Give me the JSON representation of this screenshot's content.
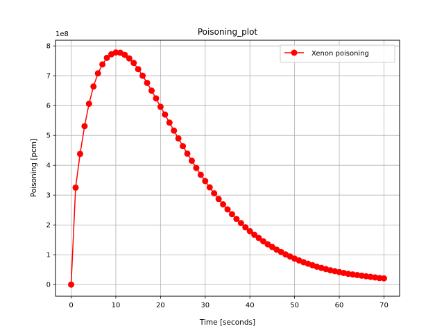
{
  "chart_data": {
    "type": "line",
    "title": "Poisoning_plot",
    "xlabel": "Time [seconds]",
    "ylabel": "Poisoning [pcm]",
    "y_exponent_label": "1e8",
    "xlim": [
      -3.5,
      73.5
    ],
    "ylim": [
      -0.39,
      8.19
    ],
    "y_scale_factor": 100000000,
    "x_ticks": [
      0,
      10,
      20,
      30,
      40,
      50,
      60,
      70
    ],
    "x_tick_labels": [
      "0",
      "10",
      "20",
      "30",
      "40",
      "50",
      "60",
      "70"
    ],
    "y_ticks": [
      0,
      1,
      2,
      3,
      4,
      5,
      6,
      7,
      8
    ],
    "y_tick_labels": [
      "0",
      "1",
      "2",
      "3",
      "4",
      "5",
      "6",
      "7",
      "8"
    ],
    "grid": true,
    "legend_position": "top-right",
    "colors": {
      "series": "#ff0000",
      "grid": "#b0b0b0",
      "legend_border": "#cccccc"
    },
    "series": [
      {
        "name": "Xenon poisoning",
        "marker": "circle",
        "x": [
          0,
          1,
          2,
          3,
          4,
          5,
          6,
          7,
          8,
          9,
          10,
          11,
          12,
          13,
          14,
          15,
          16,
          17,
          18,
          19,
          20,
          21,
          22,
          23,
          24,
          25,
          26,
          27,
          28,
          29,
          30,
          31,
          32,
          33,
          34,
          35,
          36,
          37,
          38,
          39,
          40,
          41,
          42,
          43,
          44,
          45,
          46,
          47,
          48,
          49,
          50,
          51,
          52,
          53,
          54,
          55,
          56,
          57,
          58,
          59,
          60,
          61,
          62,
          63,
          64,
          65,
          66,
          67,
          68,
          69,
          70
        ],
        "values": [
          0,
          3.25,
          4.38,
          5.31,
          6.06,
          6.64,
          7.08,
          7.38,
          7.6,
          7.72,
          7.78,
          7.77,
          7.7,
          7.58,
          7.43,
          7.22,
          7.0,
          6.76,
          6.5,
          6.24,
          5.96,
          5.7,
          5.43,
          5.16,
          4.9,
          4.64,
          4.39,
          4.15,
          3.91,
          3.68,
          3.47,
          3.26,
          3.06,
          2.87,
          2.69,
          2.52,
          2.36,
          2.2,
          2.06,
          1.92,
          1.79,
          1.67,
          1.56,
          1.45,
          1.35,
          1.26,
          1.17,
          1.09,
          1.01,
          0.94,
          0.87,
          0.81,
          0.75,
          0.7,
          0.65,
          0.6,
          0.56,
          0.52,
          0.48,
          0.45,
          0.42,
          0.39,
          0.36,
          0.34,
          0.32,
          0.3,
          0.28,
          0.26,
          0.24,
          0.22,
          0.21
        ]
      }
    ]
  }
}
